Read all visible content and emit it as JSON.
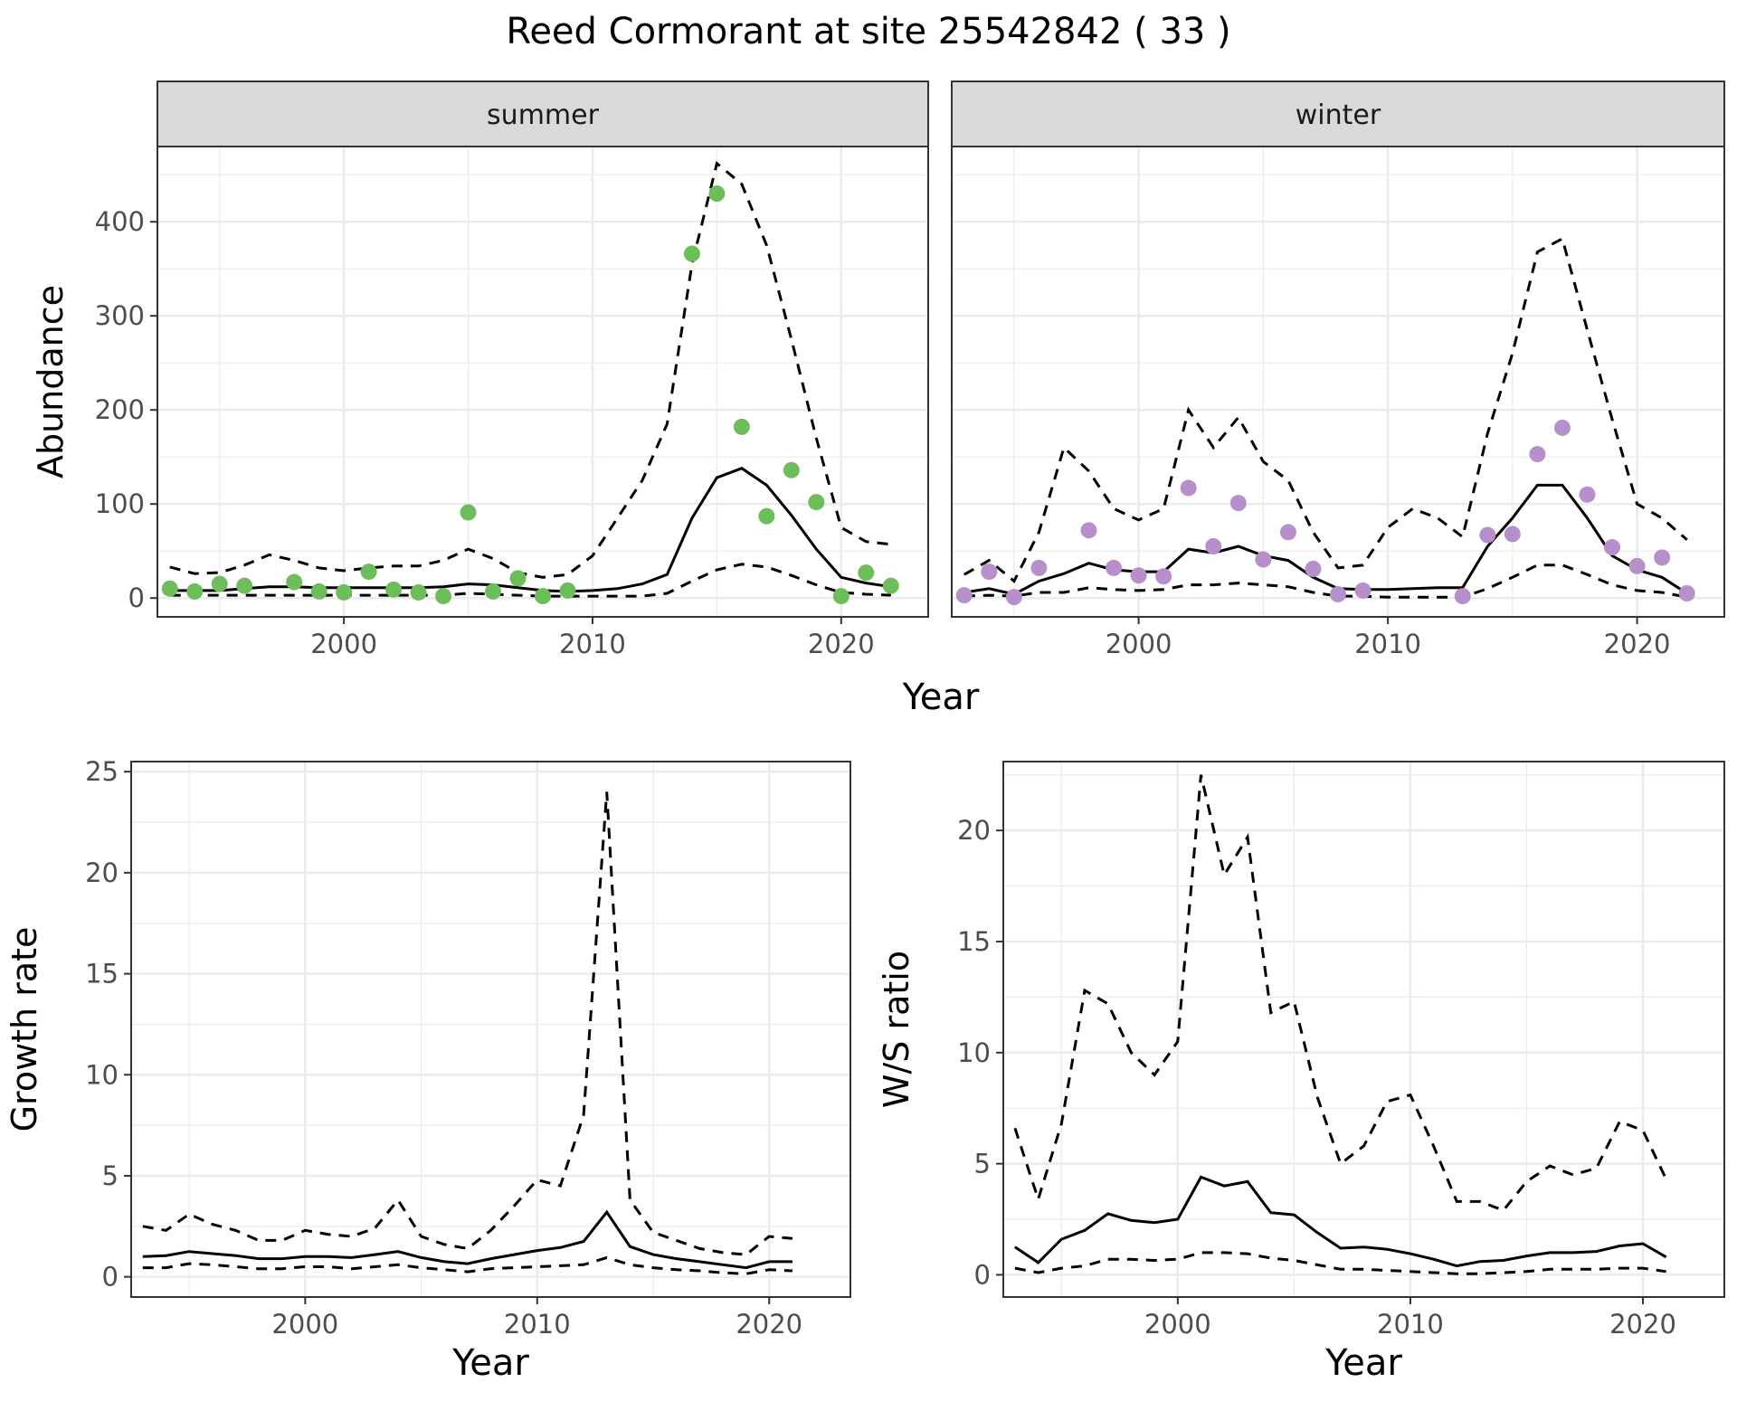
{
  "title": "Reed Cormorant at site 25542842 ( 33 )",
  "colors": {
    "summer": "#6dbd5b",
    "winter": "#b68fcb",
    "line": "#000000"
  },
  "chart_data": [
    {
      "type": "line",
      "panel": "summer",
      "facet_label": "summer",
      "ylabel": "Abundance",
      "xlabel": "Year",
      "xlim": [
        1992.5,
        2023.5
      ],
      "ylim": [
        -20,
        480
      ],
      "xticks": [
        2000,
        2010,
        2020
      ],
      "yticks": [
        0,
        100,
        200,
        300,
        400
      ],
      "grid": true,
      "x": [
        1993,
        1994,
        1995,
        1996,
        1997,
        1998,
        1999,
        2000,
        2001,
        2002,
        2003,
        2004,
        2005,
        2006,
        2007,
        2008,
        2009,
        2010,
        2011,
        2012,
        2013,
        2014,
        2015,
        2016,
        2017,
        2018,
        2019,
        2020,
        2021,
        2022
      ],
      "fit": [
        8,
        8,
        8,
        10,
        12,
        12,
        11,
        11,
        11,
        11,
        11,
        12,
        15,
        14,
        11,
        8,
        7,
        8,
        10,
        15,
        25,
        85,
        128,
        138,
        120,
        88,
        52,
        22,
        16,
        12
      ],
      "lower": [
        3,
        3,
        3,
        3,
        3,
        3,
        3,
        3,
        3,
        3,
        3,
        3,
        5,
        4,
        3,
        2,
        2,
        2,
        2,
        2,
        5,
        18,
        30,
        36,
        33,
        24,
        14,
        6,
        4,
        3
      ],
      "upper": [
        33,
        26,
        27,
        35,
        46,
        40,
        32,
        29,
        32,
        34,
        34,
        40,
        52,
        42,
        27,
        22,
        25,
        45,
        85,
        125,
        185,
        355,
        462,
        440,
        375,
        275,
        170,
        75,
        60,
        57
      ],
      "points_x": [
        1993,
        1994,
        1995,
        1996,
        1998,
        1999,
        2000,
        2001,
        2002,
        2003,
        2004,
        2005,
        2006,
        2007,
        2008,
        2009,
        2014,
        2015,
        2016,
        2017,
        2018,
        2019,
        2020,
        2021,
        2022
      ],
      "points_y": [
        10,
        7,
        15,
        13,
        17,
        7,
        6,
        28,
        9,
        6,
        2,
        91,
        7,
        21,
        2,
        8,
        366,
        430,
        182,
        87,
        136,
        102,
        2,
        27,
        13
      ]
    },
    {
      "type": "line",
      "panel": "winter",
      "facet_label": "winter",
      "xlabel": "Year",
      "xlim": [
        1992.5,
        2023.5
      ],
      "ylim": [
        -20,
        480
      ],
      "xticks": [
        2000,
        2010,
        2020
      ],
      "grid": true,
      "x": [
        1993,
        1994,
        1995,
        1996,
        1997,
        1998,
        1999,
        2000,
        2001,
        2002,
        2003,
        2004,
        2005,
        2006,
        2007,
        2008,
        2009,
        2010,
        2011,
        2012,
        2013,
        2014,
        2015,
        2016,
        2017,
        2018,
        2019,
        2020,
        2021,
        2022
      ],
      "fit": [
        6,
        10,
        4,
        18,
        26,
        37,
        30,
        28,
        28,
        52,
        48,
        55,
        45,
        40,
        22,
        10,
        9,
        9,
        10,
        11,
        11,
        55,
        85,
        120,
        120,
        85,
        45,
        30,
        22,
        5
      ],
      "lower": [
        2,
        3,
        2,
        6,
        6,
        11,
        9,
        8,
        9,
        14,
        14,
        16,
        14,
        12,
        6,
        2,
        2,
        1,
        1,
        1,
        1,
        10,
        22,
        35,
        35,
        25,
        14,
        8,
        6,
        1
      ],
      "upper": [
        25,
        40,
        18,
        70,
        160,
        135,
        95,
        83,
        95,
        200,
        160,
        192,
        145,
        125,
        70,
        32,
        35,
        75,
        95,
        85,
        65,
        175,
        260,
        368,
        382,
        285,
        190,
        100,
        85,
        62
      ],
      "points_x": [
        1993,
        1994,
        1995,
        1996,
        1998,
        1999,
        2000,
        2001,
        2002,
        2003,
        2004,
        2005,
        2006,
        2007,
        2008,
        2009,
        2013,
        2014,
        2015,
        2016,
        2017,
        2018,
        2019,
        2020,
        2021,
        2022
      ],
      "points_y": [
        3,
        28,
        1,
        32,
        72,
        32,
        24,
        23,
        117,
        55,
        101,
        41,
        70,
        31,
        4,
        8,
        2,
        67,
        68,
        153,
        181,
        110,
        54,
        34,
        43,
        5
      ]
    },
    {
      "type": "line",
      "panel": "growth",
      "ylabel": "Growth rate",
      "xlabel": "Year",
      "xlim": [
        1992.5,
        2023.5
      ],
      "ylim": [
        -1,
        25.5
      ],
      "xticks": [
        2000,
        2010,
        2020
      ],
      "yticks": [
        0,
        5,
        10,
        15,
        20,
        25
      ],
      "grid": true,
      "x": [
        1993,
        1994,
        1995,
        1996,
        1997,
        1998,
        1999,
        2000,
        2001,
        2002,
        2003,
        2004,
        2005,
        2006,
        2007,
        2008,
        2009,
        2010,
        2011,
        2012,
        2013,
        2014,
        2015,
        2016,
        2017,
        2018,
        2019,
        2020,
        2021
      ],
      "fit": [
        1.0,
        1.05,
        1.25,
        1.15,
        1.05,
        0.9,
        0.9,
        1.0,
        1.0,
        0.95,
        1.1,
        1.25,
        0.95,
        0.75,
        0.65,
        0.9,
        1.1,
        1.3,
        1.45,
        1.75,
        3.2,
        1.5,
        1.1,
        0.9,
        0.75,
        0.6,
        0.45,
        0.75,
        0.75
      ],
      "lower": [
        0.45,
        0.45,
        0.65,
        0.6,
        0.5,
        0.4,
        0.4,
        0.5,
        0.5,
        0.4,
        0.5,
        0.6,
        0.45,
        0.35,
        0.25,
        0.4,
        0.45,
        0.5,
        0.55,
        0.6,
        0.95,
        0.6,
        0.45,
        0.35,
        0.3,
        0.2,
        0.15,
        0.35,
        0.3
      ],
      "upper": [
        2.5,
        2.3,
        3.1,
        2.6,
        2.3,
        1.8,
        1.8,
        2.3,
        2.1,
        2.0,
        2.4,
        3.8,
        2.0,
        1.6,
        1.4,
        2.3,
        3.5,
        4.8,
        4.5,
        8.0,
        24.0,
        3.8,
        2.2,
        1.8,
        1.4,
        1.2,
        1.1,
        2.0,
        1.9
      ]
    },
    {
      "type": "line",
      "panel": "ratio",
      "ylabel": "W/S ratio",
      "xlabel": "Year",
      "xlim": [
        1992.5,
        2023.5
      ],
      "ylim": [
        -1,
        23.1
      ],
      "xticks": [
        2000,
        2010,
        2020
      ],
      "yticks": [
        0,
        5,
        10,
        15,
        20
      ],
      "grid": true,
      "x": [
        1993,
        1994,
        1995,
        1996,
        1997,
        1998,
        1999,
        2000,
        2001,
        2002,
        2003,
        2004,
        2005,
        2006,
        2007,
        2008,
        2009,
        2010,
        2011,
        2012,
        2013,
        2014,
        2015,
        2016,
        2017,
        2018,
        2019,
        2020,
        2021
      ],
      "fit": [
        1.25,
        0.55,
        1.6,
        2.0,
        2.75,
        2.45,
        2.35,
        2.5,
        4.4,
        4.0,
        4.2,
        2.8,
        2.7,
        1.9,
        1.2,
        1.25,
        1.15,
        0.95,
        0.7,
        0.4,
        0.6,
        0.65,
        0.85,
        1.0,
        1.0,
        1.05,
        1.3,
        1.4,
        0.8
      ],
      "lower": [
        0.3,
        0.1,
        0.3,
        0.4,
        0.7,
        0.7,
        0.65,
        0.7,
        1.0,
        1.0,
        0.95,
        0.75,
        0.65,
        0.45,
        0.25,
        0.25,
        0.2,
        0.15,
        0.1,
        0.05,
        0.05,
        0.1,
        0.15,
        0.25,
        0.25,
        0.25,
        0.3,
        0.3,
        0.15
      ],
      "upper": [
        6.6,
        3.4,
        6.8,
        12.8,
        12.2,
        10.0,
        9.0,
        10.5,
        22.5,
        18.0,
        19.7,
        11.8,
        12.3,
        8.0,
        5.0,
        5.8,
        7.8,
        8.1,
        5.8,
        3.3,
        3.3,
        2.9,
        4.2,
        4.9,
        4.5,
        4.8,
        6.9,
        6.5,
        4.3
      ]
    }
  ]
}
